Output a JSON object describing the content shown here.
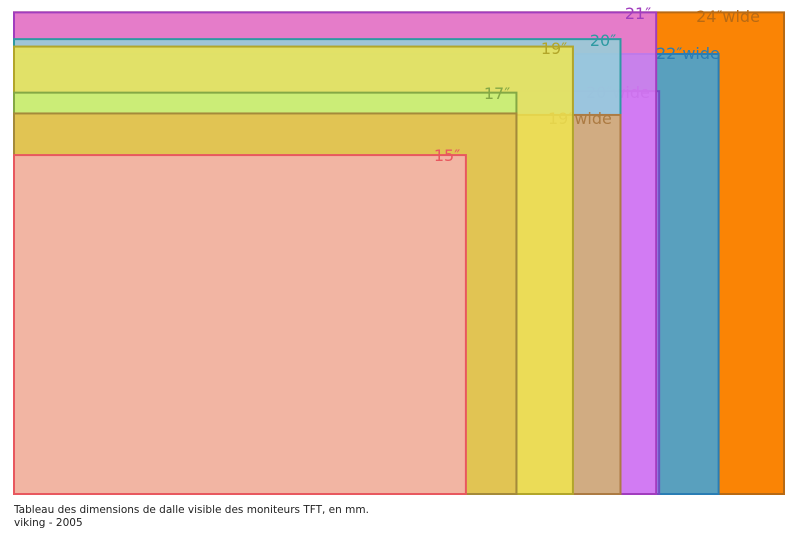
{
  "caption": {
    "line1": "Tableau des dimensions de dalle visible des moniteurs TFT, en mm.",
    "line2": "viking - 2005"
  },
  "panels": [
    {
      "id": "24-wide",
      "label": "24″wide",
      "fill": "#FA8405",
      "stroke": "#B86A14",
      "width_mm": 518,
      "height_mm": 324
    },
    {
      "id": "22-wide",
      "label": "22″wide",
      "fill": "#36A6E8",
      "stroke": "#2A7DB4",
      "width_mm": 474,
      "height_mm": 296
    },
    {
      "id": "20-wide",
      "label": "20″wide",
      "fill": "#9C77F0",
      "stroke": "#6D4FC0",
      "width_mm": 434,
      "height_mm": 271
    },
    {
      "id": "21",
      "label": "21″",
      "fill": "#E17AF5",
      "stroke": "#A13DBE",
      "width_mm": 432,
      "height_mm": 324
    },
    {
      "id": "20",
      "label": "20″",
      "fill": "#8FD6D9",
      "stroke": "#2E9AA2",
      "width_mm": 408,
      "height_mm": 306
    },
    {
      "id": "19-wide",
      "label": "19″wide",
      "fill": "#DDA66E",
      "stroke": "#AC7B43",
      "width_mm": 408,
      "height_mm": 255
    },
    {
      "id": "19",
      "label": "19″",
      "fill": "#F0E74E",
      "stroke": "#B2A62A",
      "width_mm": 376,
      "height_mm": 301
    },
    {
      "id": "17",
      "label": "17″",
      "fill": "#C6EF7A",
      "stroke": "#84A845",
      "width_mm": 338,
      "height_mm": 270
    },
    {
      "id": "17-overlap",
      "label": "",
      "fill": "#E4BE4E",
      "stroke": "#A48A3A",
      "width_mm": 338,
      "height_mm": 256
    },
    {
      "id": "15",
      "label": "15″",
      "fill": "#F5B2B4",
      "stroke": "#E8585F",
      "width_mm": 304,
      "height_mm": 228
    }
  ]
}
